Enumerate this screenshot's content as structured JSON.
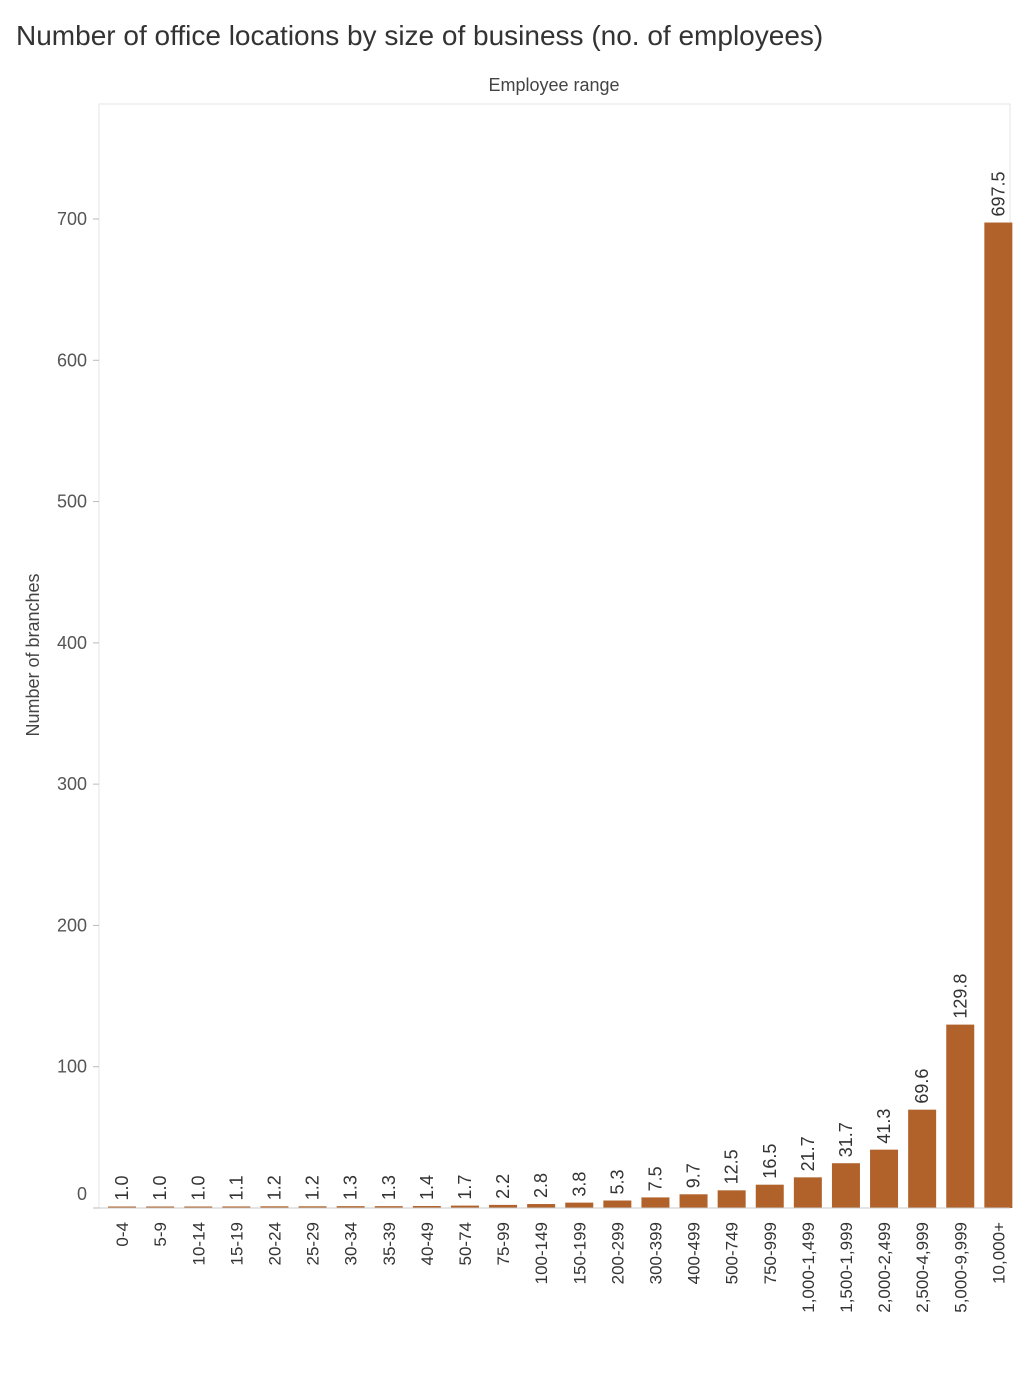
{
  "chart_data": {
    "type": "bar",
    "title": "Number of office locations by size of business (no. of employees)",
    "xlabel": "Employee range",
    "ylabel": "Number of branches",
    "ylim": [
      0,
      780
    ],
    "yticks": [
      0,
      100,
      200,
      300,
      400,
      500,
      600,
      700
    ],
    "yticks_labels": [
      "0",
      "100",
      "200",
      "300",
      "400",
      "500",
      "600",
      "700"
    ],
    "categories": [
      "0-4",
      "5-9",
      "10-14",
      "15-19",
      "20-24",
      "25-29",
      "30-34",
      "35-39",
      "40-49",
      "50-74",
      "75-99",
      "100-149",
      "150-199",
      "200-299",
      "300-399",
      "400-499",
      "500-749",
      "750-999",
      "1,000-1,499",
      "1,500-1,999",
      "2,000-2,499",
      "2,500-4,999",
      "5,000-9,999",
      "10,000+"
    ],
    "values": [
      1.0,
      1.0,
      1.0,
      1.1,
      1.2,
      1.2,
      1.3,
      1.3,
      1.4,
      1.7,
      2.2,
      2.8,
      3.8,
      5.3,
      7.5,
      9.7,
      12.5,
      16.5,
      21.7,
      31.7,
      41.3,
      69.6,
      129.8,
      697.5
    ],
    "value_labels": [
      "1.0",
      "1.0",
      "1.0",
      "1.1",
      "1.2",
      "1.2",
      "1.3",
      "1.3",
      "1.4",
      "1.7",
      "2.2",
      "2.8",
      "3.8",
      "5.3",
      "7.5",
      "9.7",
      "12.5",
      "16.5",
      "21.7",
      "31.7",
      "41.3",
      "69.6",
      "129.8",
      "697.5"
    ],
    "bar_color": "#b0622a",
    "grid": false,
    "legend": "none",
    "x_axis_title_position": "top"
  }
}
